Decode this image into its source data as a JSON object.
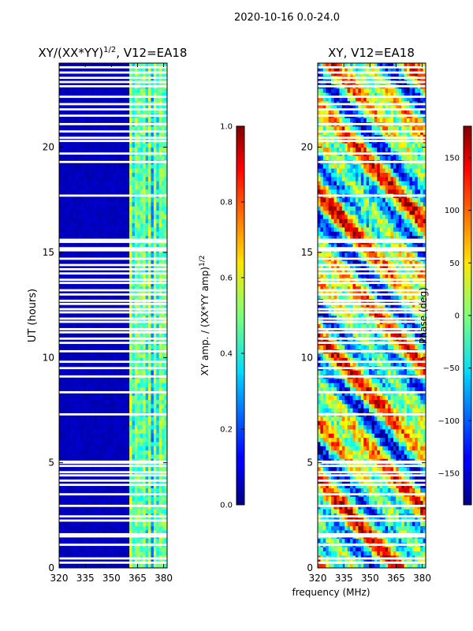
{
  "suptitle": "2020-10-16 0.0-24.0",
  "colors": {
    "bg": "#ffffff",
    "frame": "#000000",
    "gap": "#ffffff"
  },
  "chart_data": [
    {
      "type": "heatmap",
      "title_main": "XY/(XX*YY)",
      "title_sup": "1/2",
      "title_tail": ", V12=EA18",
      "xlabel": "",
      "ylabel": "UT (hours)",
      "xlim": [
        320,
        382
      ],
      "ylim": [
        0,
        24
      ],
      "xticks": [
        320,
        335,
        350,
        365,
        380
      ],
      "xtick_labels": [
        "320",
        "335",
        "350",
        "365",
        "380"
      ],
      "yticks": [
        0,
        5,
        10,
        15,
        20
      ],
      "ytick_labels": [
        "0",
        "5",
        "10",
        "15",
        "20"
      ],
      "quiet_band_upper_mhz": 360,
      "colorbar": {
        "label_main": "XY amp. / (XX*YY amp)",
        "label_sup": "1/2",
        "range": [
          0.0,
          1.0
        ],
        "ticks": [
          0.0,
          0.2,
          0.4,
          0.6,
          0.8,
          1.0
        ],
        "tick_labels": [
          "0.0",
          "0.2",
          "0.4",
          "0.6",
          "0.8",
          "1.0"
        ]
      }
    },
    {
      "type": "heatmap",
      "title_main": "XY, V12=EA18",
      "title_sup": "",
      "title_tail": "",
      "xlabel": "frequency (MHz)",
      "ylabel": "",
      "xlim": [
        320,
        382
      ],
      "ylim": [
        0,
        24
      ],
      "xticks": [
        320,
        335,
        350,
        365,
        380
      ],
      "xtick_labels": [
        "320",
        "335",
        "350",
        "365",
        "380"
      ],
      "yticks": [
        0,
        5,
        10,
        15,
        20
      ],
      "ytick_labels": [
        "0",
        "5",
        "10",
        "15",
        "20"
      ],
      "colorbar": {
        "label_main": "Phase (deg)",
        "label_sup": "",
        "range": [
          -180,
          180
        ],
        "ticks": [
          -150,
          -100,
          -50,
          0,
          50,
          100,
          150
        ],
        "tick_labels": [
          "−150",
          "−100",
          "−50",
          "0",
          "50",
          "100",
          "150"
        ]
      }
    }
  ],
  "flagged_hours": [
    0.25,
    0.45,
    1.1,
    1.5,
    1.6,
    2.25,
    2.45,
    2.95,
    3.5,
    3.95,
    4.15,
    4.4,
    4.55,
    4.85,
    5.0,
    5.05,
    7.3,
    8.35,
    9.1,
    9.5,
    9.8,
    10.3,
    10.7,
    10.9,
    11.2,
    11.35,
    11.7,
    11.85,
    12.15,
    12.3,
    12.55,
    12.7,
    13.0,
    13.2,
    13.55,
    13.7,
    14.0,
    14.2,
    14.4,
    14.7,
    15.1,
    15.2,
    15.5,
    15.6,
    17.7,
    19.3,
    19.7,
    20.3,
    20.45,
    20.75,
    21.1,
    21.5,
    21.8,
    22.05,
    22.4,
    22.9,
    23.1,
    23.3,
    23.55,
    23.8
  ]
}
